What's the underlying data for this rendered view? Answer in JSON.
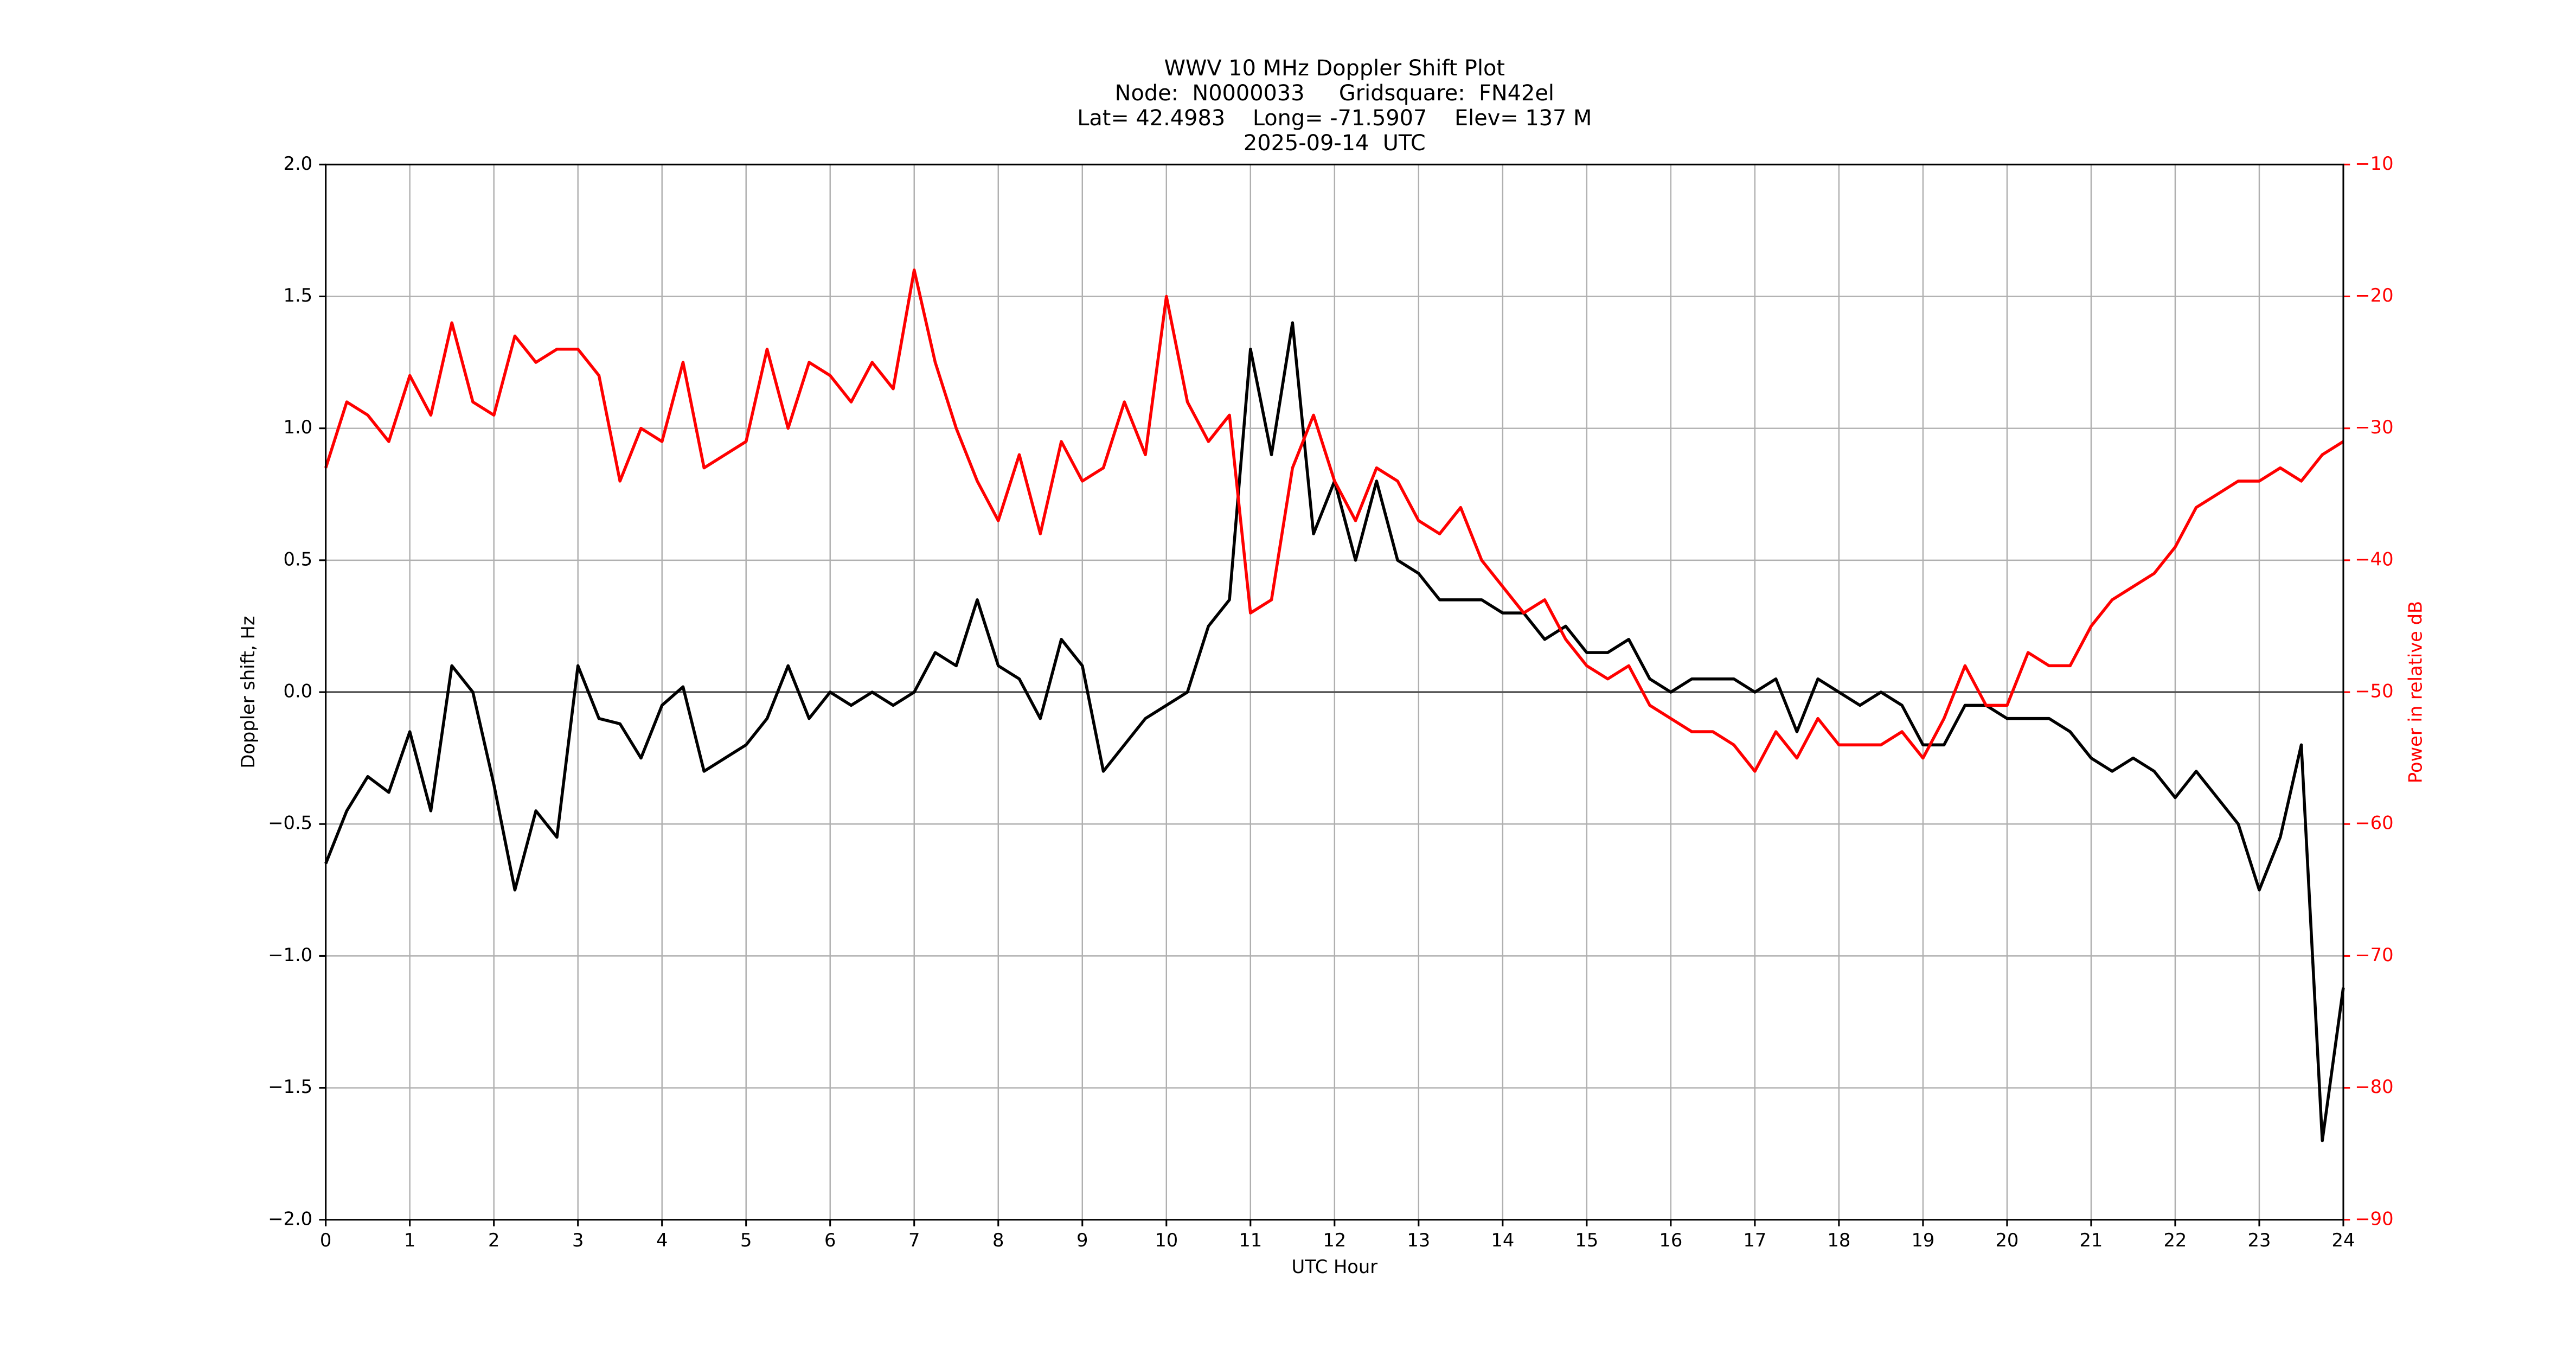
{
  "chart_data": {
    "type": "line",
    "title": [
      "WWV 10 MHz Doppler Shift Plot",
      "Node:  N0000033     Gridsquare:  FN42el",
      "Lat= 42.4983    Long= -71.5907    Elev= 137 M",
      "2025-09-14  UTC"
    ],
    "x_label": "UTC Hour",
    "y_label": "Doppler shift, Hz",
    "y2_label": "Power in relative dB",
    "x": [
      0,
      0.25,
      0.5,
      0.75,
      1,
      1.25,
      1.5,
      1.75,
      2,
      2.25,
      2.5,
      2.75,
      3,
      3.25,
      3.5,
      3.75,
      4,
      4.25,
      4.5,
      4.75,
      5,
      5.25,
      5.5,
      5.75,
      6,
      6.25,
      6.5,
      6.75,
      7,
      7.25,
      7.5,
      7.75,
      8,
      8.25,
      8.5,
      8.75,
      9,
      9.25,
      9.5,
      9.75,
      10,
      10.25,
      10.5,
      10.75,
      11,
      11.25,
      11.5,
      11.75,
      12,
      12.25,
      12.5,
      12.75,
      13,
      13.25,
      13.5,
      13.75,
      14,
      14.25,
      14.5,
      14.75,
      15,
      15.25,
      15.5,
      15.75,
      16,
      16.25,
      16.5,
      16.75,
      17,
      17.25,
      17.5,
      17.75,
      18,
      18.25,
      18.5,
      18.75,
      19,
      19.25,
      19.5,
      19.75,
      20,
      20.25,
      20.5,
      20.75,
      21,
      21.25,
      21.5,
      21.75,
      22,
      22.25,
      22.5,
      22.75,
      23,
      23.25,
      23.5,
      23.75,
      24
    ],
    "series": [
      {
        "color": "#000000",
        "values": [
          -0.65,
          -0.45,
          -0.32,
          -0.38,
          -0.15,
          -0.45,
          0.1,
          0.0,
          -0.35,
          -0.75,
          -0.45,
          -0.55,
          0.1,
          -0.1,
          -0.12,
          -0.25,
          -0.05,
          0.02,
          -0.3,
          -0.25,
          -0.2,
          -0.1,
          0.1,
          -0.1,
          0.0,
          -0.05,
          0.0,
          -0.05,
          0.0,
          0.15,
          0.1,
          0.35,
          0.1,
          0.05,
          -0.1,
          0.2,
          0.1,
          -0.3,
          -0.2,
          -0.1,
          -0.05,
          0.0,
          0.25,
          0.35,
          1.3,
          0.9,
          1.4,
          0.6,
          0.8,
          0.5,
          0.8,
          0.5,
          0.45,
          0.35,
          0.35,
          0.35,
          0.3,
          0.3,
          0.2,
          0.25,
          0.15,
          0.15,
          0.2,
          0.05,
          0.0,
          0.05,
          0.05,
          0.05,
          0.0,
          0.05,
          -0.15,
          0.05,
          0.0,
          -0.05,
          0.0,
          -0.05,
          -0.2,
          -0.2,
          -0.05,
          -0.05,
          -0.1,
          -0.1,
          -0.1,
          -0.15,
          -0.25,
          -0.3,
          -0.25,
          -0.3,
          -0.4,
          -0.3,
          -0.4,
          -0.5,
          -0.75,
          -0.55,
          -0.2,
          -1.7,
          -1.12
        ]
      },
      {
        "color": "#ff0000",
        "axis": "y2",
        "values": [
          -33,
          -28,
          -29,
          -31,
          -26,
          -29,
          -22,
          -28,
          -29,
          -23,
          -25,
          -24,
          -24,
          -26,
          -34,
          -30,
          -31,
          -25,
          -33,
          -32,
          -31,
          -24,
          -30,
          -25,
          -26,
          -28,
          -25,
          -27,
          -18,
          -25,
          -30,
          -34,
          -37,
          -32,
          -38,
          -31,
          -34,
          -33,
          -28,
          -32,
          -20,
          -28,
          -31,
          -29,
          -44,
          -43,
          -33,
          -29,
          -34,
          -37,
          -33,
          -34,
          -37,
          -38,
          -36,
          -40,
          -42,
          -44,
          -43,
          -46,
          -48,
          -49,
          -48,
          -51,
          -52,
          -53,
          -53,
          -54,
          -56,
          -53,
          -55,
          -52,
          -54,
          -54,
          -54,
          -53,
          -55,
          -52,
          -48,
          -51,
          -51,
          -47,
          -48,
          -48,
          -45,
          -43,
          -42,
          -41,
          -39,
          -36,
          -35,
          -34,
          -34,
          -33,
          -34,
          -32,
          -31
        ]
      }
    ],
    "xlim": [
      0,
      24
    ],
    "xticks": [
      0,
      1,
      2,
      3,
      4,
      5,
      6,
      7,
      8,
      9,
      10,
      11,
      12,
      13,
      14,
      15,
      16,
      17,
      18,
      19,
      20,
      21,
      22,
      23,
      24
    ],
    "ylim": [
      -2,
      2
    ],
    "yticks": [
      {
        "value": -2,
        "label": "−2.0"
      },
      {
        "value": -1.5,
        "label": "−1.5"
      },
      {
        "value": -1,
        "label": "−1.0"
      },
      {
        "value": -0.5,
        "label": "−0.5"
      },
      {
        "value": 0,
        "label": "0.0"
      },
      0.5,
      {
        "value": 1,
        "label": "1.0"
      },
      1.5,
      {
        "value": 2,
        "label": "2.0"
      }
    ],
    "y2lim": [
      -90,
      -10
    ],
    "y2ticks": [
      {
        "value": -90,
        "label": "−90"
      },
      {
        "value": -80,
        "label": "−80"
      },
      {
        "value": -70,
        "label": "−70"
      },
      {
        "value": -60,
        "label": "−60"
      },
      {
        "value": -50,
        "label": "−50"
      },
      {
        "value": -40,
        "label": "−40"
      },
      {
        "value": -30,
        "label": "−30"
      },
      {
        "value": -20,
        "label": "−20"
      },
      {
        "value": -10,
        "label": "−10"
      }
    ],
    "y2_color": "#ff0000",
    "grid": true
  }
}
